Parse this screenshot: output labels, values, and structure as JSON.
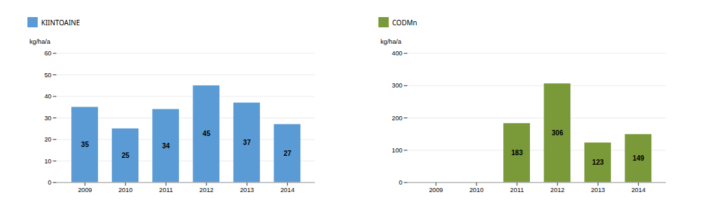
{
  "chart_data": [
    {
      "type": "bar",
      "categories": [
        "2009",
        "2010",
        "2011",
        "2012",
        "2013",
        "2014"
      ],
      "series": [
        {
          "name": "KIINTOAINE",
          "color": "#5B9BD5",
          "values": [
            35,
            25,
            34,
            45,
            37,
            27
          ]
        }
      ],
      "ylabel": "kg/ha/a",
      "ylim": [
        0,
        60
      ],
      "yticks": [
        0,
        10,
        20,
        30,
        40,
        50,
        60
      ],
      "grid": true,
      "legend": "top",
      "data_labels": true
    },
    {
      "type": "bar",
      "categories": [
        "2009",
        "2010",
        "2011",
        "2012",
        "2013",
        "2014"
      ],
      "series": [
        {
          "name": "CODMn",
          "color": "#7A9A3A",
          "values": [
            0,
            0,
            183,
            306,
            123,
            149
          ],
          "value_labels": [
            null,
            null,
            "183",
            "306",
            "123",
            "149"
          ]
        }
      ],
      "ylabel": "kg/ha/a",
      "ylim": [
        0,
        400
      ],
      "yticks": [
        0,
        100,
        200,
        300,
        400
      ],
      "grid": true,
      "legend": "top",
      "data_labels": true
    }
  ]
}
